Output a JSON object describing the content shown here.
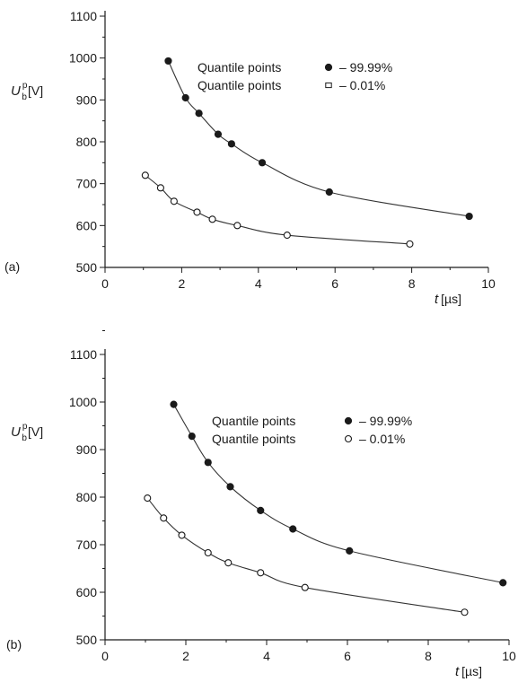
{
  "chart_data": [
    {
      "type": "line",
      "panel_label": "(a)",
      "ylabel": {
        "main": "U",
        "sup": "p",
        "sub": "b",
        "unit": "[V]"
      },
      "xlabel": {
        "main": "t",
        "unit": "[µs]"
      },
      "xlim": [
        0,
        10
      ],
      "ylim": [
        500,
        1100
      ],
      "xticks": [
        0,
        2,
        4,
        6,
        8,
        10
      ],
      "yticks": [
        500,
        600,
        700,
        800,
        900,
        1000,
        1100
      ],
      "grid": false,
      "legend": [
        {
          "text": "Quantile points",
          "value": "– 99.99%",
          "marker": "filled"
        },
        {
          "text": "Quantile points",
          "value": "– 0.01%",
          "marker": "open-square"
        }
      ],
      "series": [
        {
          "marker": "filled",
          "x": [
            1.65,
            2.1,
            2.45,
            2.95,
            3.3,
            4.1,
            5.85,
            9.5
          ],
          "y": [
            993,
            905,
            868,
            818,
            795,
            750,
            680,
            622
          ]
        },
        {
          "marker": "open",
          "x": [
            1.05,
            1.45,
            1.8,
            2.4,
            2.8,
            3.45,
            4.75,
            7.95
          ],
          "y": [
            720,
            690,
            658,
            632,
            615,
            600,
            577,
            556
          ]
        }
      ]
    },
    {
      "type": "line",
      "panel_label": "(b)",
      "ylabel": {
        "main": "U",
        "sup": "p",
        "sub": "b",
        "unit": "[V]"
      },
      "xlabel": {
        "main": "t",
        "unit": "[µs]"
      },
      "xlim": [
        0,
        10
      ],
      "ylim": [
        500,
        1100
      ],
      "xticks": [
        0,
        2,
        4,
        6,
        8,
        10
      ],
      "yticks": [
        500,
        600,
        700,
        800,
        900,
        1000,
        1100
      ],
      "grid": false,
      "legend": [
        {
          "text": "Quantile points",
          "value": "– 99.99%",
          "marker": "filled"
        },
        {
          "text": "Quantile points",
          "value": "– 0.01%",
          "marker": "open"
        }
      ],
      "series": [
        {
          "marker": "filled",
          "x": [
            1.7,
            2.15,
            2.55,
            3.1,
            3.85,
            4.65,
            6.05,
            9.85
          ],
          "y": [
            995,
            928,
            873,
            822,
            772,
            733,
            687,
            620
          ]
        },
        {
          "marker": "open",
          "x": [
            1.05,
            1.45,
            1.9,
            2.55,
            3.05,
            3.85,
            4.95,
            8.9
          ],
          "y": [
            798,
            756,
            720,
            683,
            662,
            641,
            610,
            558
          ]
        }
      ]
    }
  ],
  "colors": {
    "ink": "#1a1a1a",
    "curve": "#333333",
    "background": "#ffffff"
  }
}
